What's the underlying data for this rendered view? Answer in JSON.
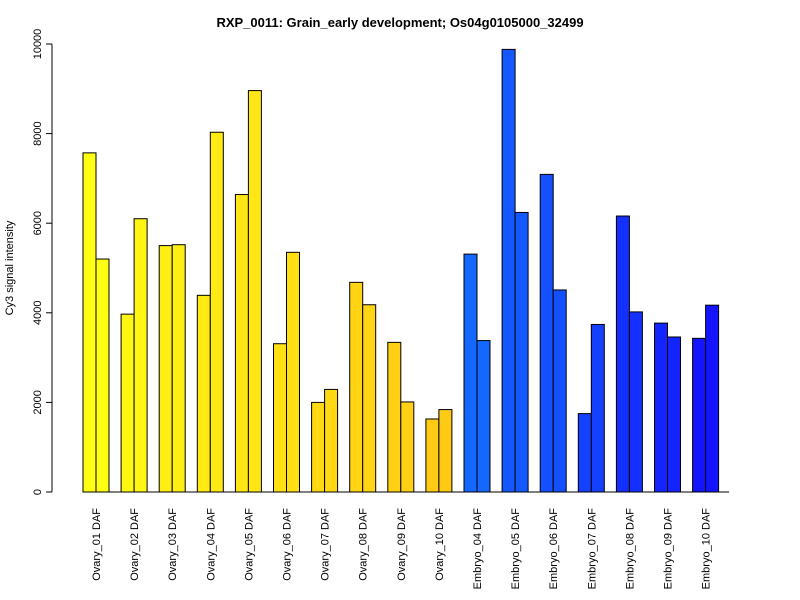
{
  "chart_data": {
    "type": "bar",
    "title": "RXP_0011: Grain_early development; Os04g0105000_32499",
    "xlabel": "",
    "ylabel": "Cy3 signal intensity",
    "ylim": [
      0,
      10000
    ],
    "yticks": [
      0,
      2000,
      4000,
      6000,
      8000,
      10000
    ],
    "grid": false,
    "legend": "none",
    "bars_per_category": 2,
    "categories": [
      "Ovary_01 DAF",
      "Ovary_02 DAF",
      "Ovary_03 DAF",
      "Ovary_04 DAF",
      "Ovary_05 DAF",
      "Ovary_06 DAF",
      "Ovary_07 DAF",
      "Ovary_08 DAF",
      "Ovary_09 DAF",
      "Ovary_10 DAF",
      "Embryo_04 DAF",
      "Embryo_05 DAF",
      "Embryo_06 DAF",
      "Embryo_07 DAF",
      "Embryo_08 DAF",
      "Embryo_09 DAF",
      "Embryo_10 DAF"
    ],
    "values": [
      [
        7570,
        5200
      ],
      [
        3970,
        6100
      ],
      [
        5500,
        5520
      ],
      [
        4390,
        8030
      ],
      [
        6640,
        8960
      ],
      [
        3310,
        5350
      ],
      [
        2000,
        2290
      ],
      [
        4680,
        4180
      ],
      [
        3340,
        2010
      ],
      [
        1630,
        1840
      ],
      [
        5310,
        3380
      ],
      [
        9880,
        6240
      ],
      [
        7090,
        4510
      ],
      [
        1750,
        3740
      ],
      [
        6160,
        4020
      ],
      [
        3770,
        3460
      ],
      [
        3430,
        4170
      ]
    ],
    "colors": [
      "#ffff14",
      "#fff614",
      "#ffee14",
      "#ffea14",
      "#ffe614",
      "#ffe014",
      "#ffd814",
      "#ffd414",
      "#ffd014",
      "#ffca14",
      "#1468ff",
      "#1458ff",
      "#1450ff",
      "#1440ff",
      "#1430ff",
      "#1424ff",
      "#1414ff"
    ]
  }
}
